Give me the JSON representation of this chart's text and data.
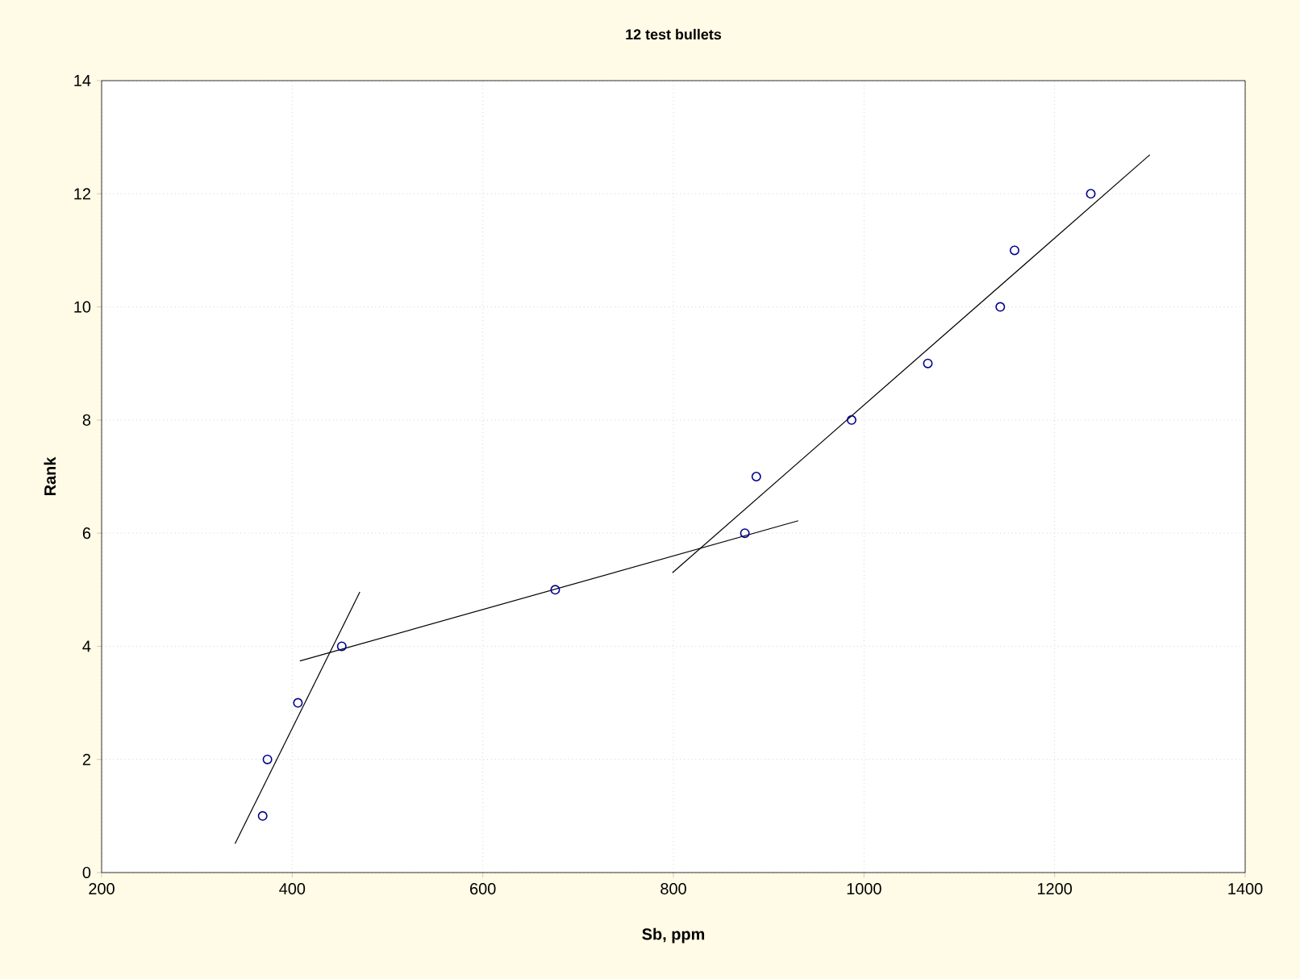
{
  "chart_data": {
    "type": "scatter",
    "title": "12 test bullets",
    "xlabel": "Sb, ppm",
    "ylabel": "Rank",
    "xlim": [
      200,
      1400
    ],
    "ylim": [
      0,
      14
    ],
    "xticks": [
      200,
      400,
      600,
      800,
      1000,
      1200,
      1400
    ],
    "yticks": [
      0,
      2,
      4,
      6,
      8,
      10,
      12,
      14
    ],
    "grid": true,
    "marker": "circle",
    "series": [
      {
        "color": "#00008b",
        "x": [
          369,
          374,
          406,
          452,
          676,
          875,
          887,
          987,
          1067,
          1143,
          1158,
          1238
        ],
        "values": [
          1,
          2,
          3,
          4,
          5,
          6,
          7,
          8,
          9,
          10,
          11,
          12
        ]
      },
      {
        "type": "line",
        "color": "#000000",
        "marker": "none",
        "x": [
          340,
          471
        ],
        "values": [
          0.51,
          4.96
        ]
      },
      {
        "type": "line",
        "color": "#000000",
        "marker": "none",
        "x": [
          408,
          931
        ],
        "values": [
          3.74,
          6.22
        ]
      },
      {
        "type": "line",
        "color": "#000000",
        "marker": "none",
        "x": [
          799,
          1300
        ],
        "values": [
          5.3,
          12.69
        ]
      }
    ]
  }
}
